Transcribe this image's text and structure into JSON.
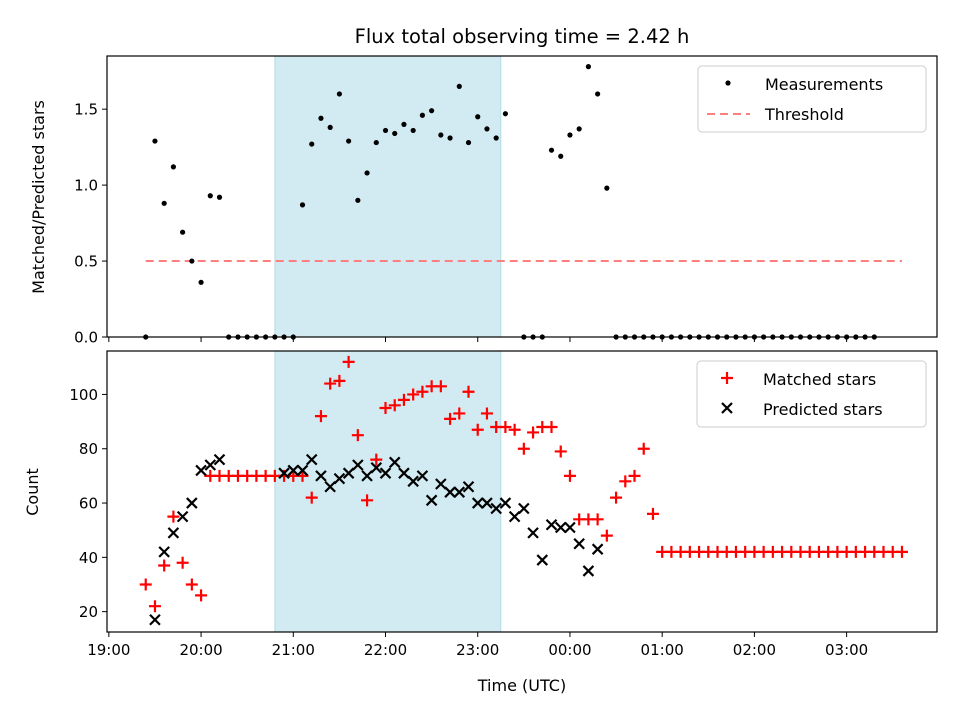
{
  "figure": {
    "title": "Flux total observing time = 2.42 h",
    "observing_band_color": "#add8e6"
  },
  "chart_data": [
    {
      "type": "scatter",
      "ylabel": "Matched/Predicted stars",
      "xlim": [
        -0.02,
        8.98
      ],
      "ylim": [
        0,
        1.85
      ],
      "yticks": [
        "0.0",
        "0.5",
        "1.0",
        "1.5"
      ],
      "shaded_interval": [
        1.8,
        4.25
      ],
      "series": [
        {
          "name": "Measurements",
          "color": "#000000",
          "x": [
            0.4,
            0.5,
            0.6,
            0.7,
            0.8,
            0.9,
            1.0,
            1.1,
            1.2,
            1.3,
            1.4,
            1.5,
            1.6,
            1.7,
            1.8,
            1.9,
            2.0,
            2.1,
            2.2,
            2.3,
            2.4,
            2.5,
            2.6,
            2.7,
            2.8,
            2.9,
            3.0,
            3.1,
            3.2,
            3.3,
            3.4,
            3.5,
            3.6,
            3.7,
            3.8,
            3.9,
            4.0,
            4.1,
            4.2,
            4.3,
            4.5,
            4.6,
            4.7,
            4.8,
            4.9,
            5.0,
            5.1,
            5.2,
            5.3,
            5.4,
            5.5,
            5.6,
            5.7,
            5.8,
            5.9,
            6.0,
            6.1,
            6.2,
            6.3,
            6.4,
            6.5,
            6.6,
            6.7,
            6.8,
            6.9,
            7.0,
            7.1,
            7.2,
            7.3,
            7.4,
            7.5,
            7.6,
            7.7,
            7.8,
            7.9,
            8.0,
            8.1,
            8.2,
            8.3
          ],
          "y": [
            0,
            1.29,
            0.88,
            1.12,
            0.69,
            0.5,
            0.36,
            0.93,
            0.92,
            0,
            0,
            0,
            0,
            0,
            0,
            0,
            0,
            0.87,
            1.27,
            1.44,
            1.38,
            1.6,
            1.29,
            0.9,
            1.08,
            1.28,
            1.36,
            1.34,
            1.4,
            1.36,
            1.46,
            1.49,
            1.33,
            1.31,
            1.65,
            1.28,
            1.45,
            1.37,
            1.31,
            1.47,
            0,
            0,
            0,
            1.23,
            1.19,
            1.33,
            1.37,
            1.78,
            1.6,
            0.98,
            0,
            0,
            0,
            0,
            0,
            0,
            0,
            0,
            0,
            0,
            0,
            0,
            0,
            0,
            0,
            0,
            0,
            0,
            0,
            0,
            0,
            0,
            0,
            0,
            0,
            0,
            0,
            0,
            0
          ]
        },
        {
          "name": "Threshold",
          "color": "#ff7f7f",
          "x": [
            0.4,
            8.6
          ],
          "y": [
            0.5,
            0.5
          ]
        }
      ]
    },
    {
      "type": "scatter",
      "xlabel": "Time (UTC)",
      "ylabel": "Count",
      "xlim": [
        -0.02,
        8.98
      ],
      "ylim": [
        12.5,
        116
      ],
      "yticks": [
        "20",
        "40",
        "60",
        "80",
        "100"
      ],
      "x_tick_values": [
        0,
        1,
        2,
        3,
        4,
        5,
        6,
        7,
        8
      ],
      "x_tick_labels": [
        "19:00",
        "20:00",
        "21:00",
        "22:00",
        "23:00",
        "00:00",
        "01:00",
        "02:00",
        "03:00"
      ],
      "shaded_interval": [
        1.8,
        4.25
      ],
      "series": [
        {
          "name": "Matched stars",
          "color": "#ff0000",
          "x": [
            0.4,
            0.5,
            0.6,
            0.7,
            0.8,
            0.9,
            1.0,
            1.1,
            1.2,
            1.3,
            1.4,
            1.5,
            1.6,
            1.7,
            1.8,
            1.9,
            2.0,
            2.1,
            2.2,
            2.3,
            2.4,
            2.5,
            2.6,
            2.7,
            2.8,
            2.9,
            3.0,
            3.1,
            3.2,
            3.3,
            3.4,
            3.5,
            3.6,
            3.7,
            3.8,
            3.9,
            4.0,
            4.1,
            4.2,
            4.3,
            4.4,
            4.5,
            4.6,
            4.7,
            4.8,
            4.9,
            5.0,
            5.1,
            5.2,
            5.3,
            5.4,
            5.5,
            5.6,
            5.7,
            5.8,
            5.9,
            6.0,
            6.1,
            6.2,
            6.3,
            6.4,
            6.5,
            6.6,
            6.7,
            6.8,
            6.9,
            7.0,
            7.1,
            7.2,
            7.3,
            7.4,
            7.5,
            7.6,
            7.7,
            7.8,
            7.9,
            8.0,
            8.1,
            8.2,
            8.3,
            8.4,
            8.5,
            8.6
          ],
          "y": [
            30,
            22,
            37,
            55,
            38,
            30,
            26,
            70,
            70,
            70,
            70,
            70,
            70,
            70,
            70,
            70,
            70,
            70,
            62,
            92,
            104,
            105,
            112,
            85,
            61,
            76,
            95,
            96,
            98,
            100,
            101,
            103,
            103,
            91,
            93,
            101,
            87,
            93,
            88,
            88,
            87,
            80,
            86,
            88,
            88,
            79,
            70,
            54,
            54,
            54,
            48,
            62,
            68,
            70,
            80,
            56,
            42,
            42,
            42,
            42,
            42,
            42,
            42,
            42,
            42,
            42,
            42,
            42,
            42,
            42,
            42,
            42,
            42,
            42,
            42,
            42,
            42,
            42,
            42,
            42,
            42,
            42,
            42
          ]
        },
        {
          "name": "Predicted stars",
          "color": "#000000",
          "x": [
            0.5,
            0.6,
            0.7,
            0.8,
            0.9,
            1.0,
            1.1,
            1.2,
            1.9,
            2.0,
            2.1,
            2.2,
            2.3,
            2.4,
            2.5,
            2.6,
            2.7,
            2.8,
            2.9,
            3.0,
            3.1,
            3.2,
            3.3,
            3.4,
            3.5,
            3.6,
            3.7,
            3.8,
            3.9,
            4.0,
            4.1,
            4.2,
            4.3,
            4.4,
            4.5,
            4.6,
            4.7,
            4.8,
            4.9,
            5.0,
            5.1,
            5.2,
            5.3
          ],
          "y": [
            17,
            42,
            49,
            55,
            60,
            72,
            74,
            76,
            71,
            72,
            72,
            76,
            70,
            66,
            69,
            71,
            74,
            70,
            73,
            71,
            75,
            71,
            68,
            70,
            61,
            67,
            64,
            64,
            66,
            60,
            60,
            58,
            60,
            55,
            58,
            49,
            39,
            52,
            51,
            51,
            45,
            35,
            43
          ]
        }
      ]
    }
  ]
}
